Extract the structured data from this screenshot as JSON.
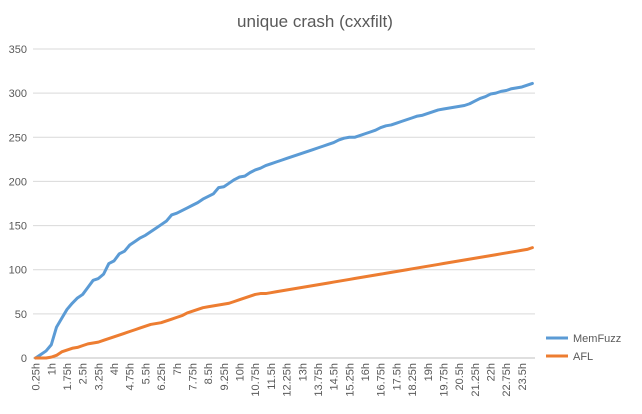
{
  "chart_data": {
    "type": "line",
    "title": "unique crash (cxxfilt)",
    "xlabel": "",
    "ylabel": "",
    "ylim": [
      0,
      350
    ],
    "yticks": [
      0,
      50,
      100,
      150,
      200,
      250,
      300,
      350
    ],
    "grid": true,
    "legend": "right",
    "x": [
      "0.25h",
      "0.5h",
      "0.75h",
      "1h",
      "1.25h",
      "1.5h",
      "1.75h",
      "2h",
      "2.25h",
      "2.5h",
      "2.75h",
      "3h",
      "3.25h",
      "3.5h",
      "3.75h",
      "4h",
      "4.25h",
      "4.5h",
      "4.75h",
      "5h",
      "5.25h",
      "5.5h",
      "5.75h",
      "6h",
      "6.25h",
      "6.5h",
      "6.75h",
      "7h",
      "7.25h",
      "7.5h",
      "7.75h",
      "8h",
      "8.25h",
      "8.5h",
      "8.75h",
      "9h",
      "9.25h",
      "9.5h",
      "9.75h",
      "10h",
      "10.25h",
      "10.5h",
      "10.75h",
      "11h",
      "11.25h",
      "11.5h",
      "11.75h",
      "12h",
      "12.25h",
      "12.5h",
      "12.75h",
      "13h",
      "13.25h",
      "13.5h",
      "13.75h",
      "14h",
      "14.25h",
      "14.5h",
      "14.75h",
      "15h",
      "15.25h",
      "15.5h",
      "15.75h",
      "16h",
      "16.25h",
      "16.5h",
      "16.75h",
      "17h",
      "17.25h",
      "17.5h",
      "17.75h",
      "18h",
      "18.25h",
      "18.5h",
      "18.75h",
      "19h",
      "19.25h",
      "19.5h",
      "19.75h",
      "20h",
      "20.25h",
      "20.5h",
      "20.75h",
      "21h",
      "21.25h",
      "21.5h",
      "21.75h",
      "22h",
      "22.25h",
      "22.5h",
      "22.75h",
      "23h",
      "23.25h",
      "23.5h",
      "23.75h",
      "24h"
    ],
    "xtick_labels": [
      "0.25h",
      "1h",
      "1.75h",
      "2.5h",
      "3.25h",
      "4h",
      "4.75h",
      "5.5h",
      "6.25h",
      "7h",
      "7.75h",
      "8.5h",
      "9.25h",
      "10h",
      "10.75h",
      "11.5h",
      "12.25h",
      "13h",
      "13.75h",
      "14.5h",
      "15.25h",
      "16h",
      "16.75h",
      "17.5h",
      "18.25h",
      "19h",
      "19.75h",
      "20.5h",
      "21.25h",
      "22h",
      "22.75h",
      "23.5h"
    ],
    "series": [
      {
        "name": "MemFuzz",
        "color": "#5B9BD5",
        "values": [
          0,
          4,
          8,
          15,
          35,
          45,
          55,
          62,
          68,
          72,
          80,
          88,
          90,
          95,
          107,
          110,
          118,
          121,
          128,
          132,
          136,
          139,
          143,
          147,
          151,
          155,
          162,
          164,
          167,
          170,
          173,
          176,
          180,
          183,
          186,
          193,
          194,
          198,
          202,
          205,
          206,
          210,
          213,
          215,
          218,
          220,
          222,
          224,
          226,
          228,
          230,
          232,
          234,
          236,
          238,
          240,
          242,
          244,
          247,
          249,
          250,
          250,
          252,
          254,
          256,
          258,
          261,
          263,
          264,
          266,
          268,
          270,
          272,
          274,
          275,
          277,
          279,
          281,
          282,
          283,
          284,
          285,
          286,
          288,
          291,
          294,
          296,
          299,
          300,
          302,
          303,
          305,
          306,
          307,
          309,
          311
        ]
      },
      {
        "name": "AFL",
        "color": "#ED7D31",
        "values": [
          0,
          0,
          0,
          1,
          3,
          7,
          9,
          11,
          12,
          14,
          16,
          17,
          18,
          20,
          22,
          24,
          26,
          28,
          30,
          32,
          34,
          36,
          38,
          39,
          40,
          42,
          44,
          46,
          48,
          51,
          53,
          55,
          57,
          58,
          59,
          60,
          61,
          62,
          64,
          66,
          68,
          70,
          72,
          73,
          73,
          74,
          75,
          76,
          77,
          78,
          79,
          80,
          81,
          82,
          83,
          84,
          85,
          86,
          87,
          88,
          89,
          90,
          91,
          92,
          93,
          94,
          95,
          96,
          97,
          98,
          99,
          100,
          101,
          102,
          103,
          104,
          105,
          106,
          107,
          108,
          109,
          110,
          111,
          112,
          113,
          114,
          115,
          116,
          117,
          118,
          119,
          120,
          121,
          122,
          123,
          125
        ]
      }
    ]
  }
}
